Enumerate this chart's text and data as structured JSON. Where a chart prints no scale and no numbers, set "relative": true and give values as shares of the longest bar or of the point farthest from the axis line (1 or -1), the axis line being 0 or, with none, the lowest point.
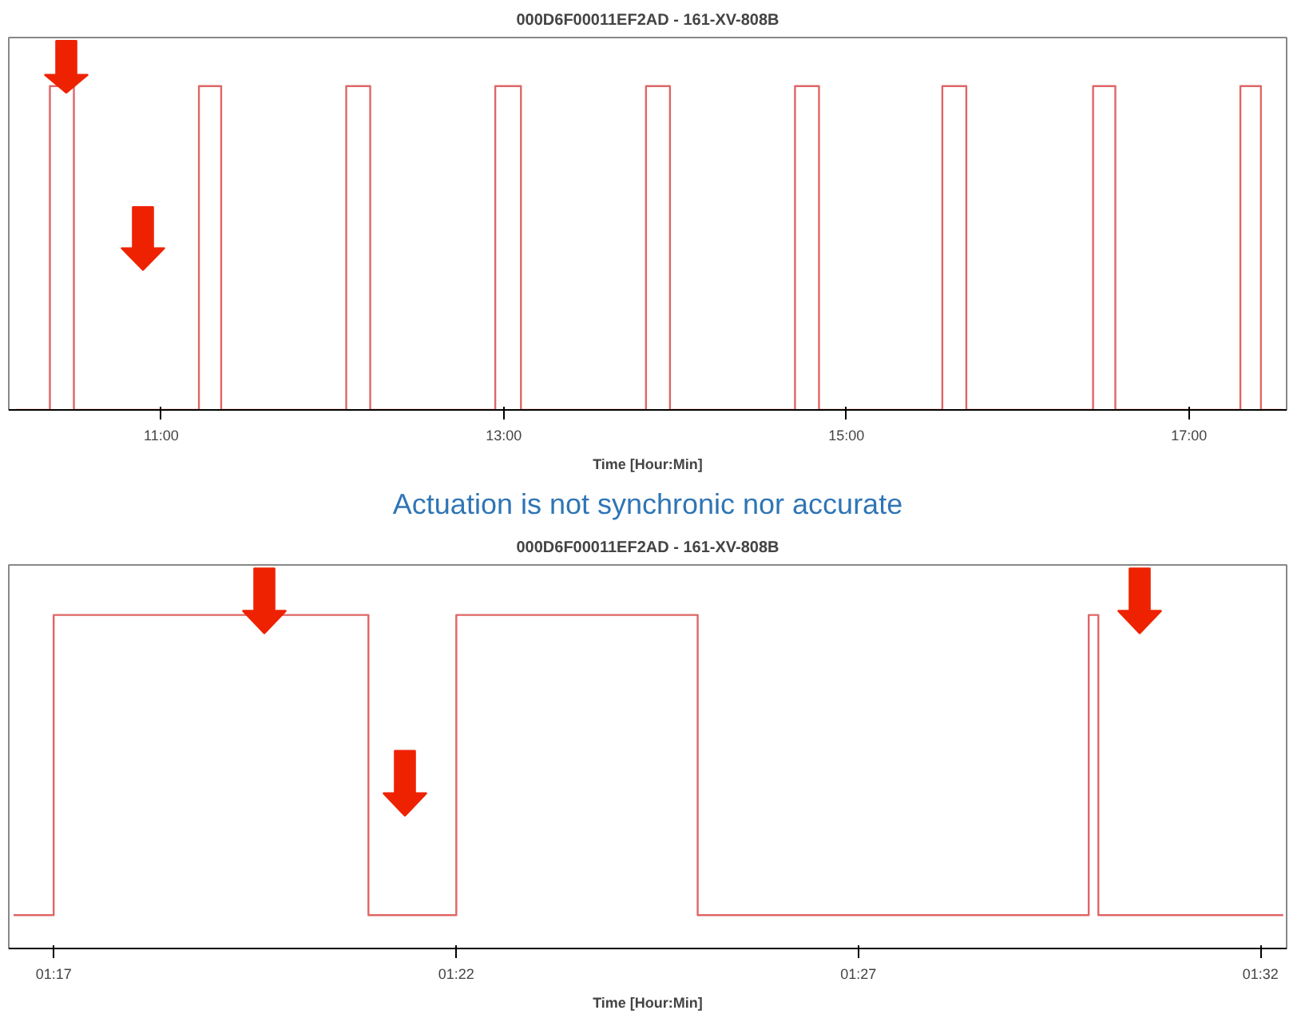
{
  "chart_data": [
    {
      "type": "step",
      "title": "000D6F00011EF2AD - 161-XV-808B",
      "xlabel": "Time [Hour:Min]",
      "relative": true,
      "grid": false,
      "annotations": [
        "Actuation is not synchronic nor accurate"
      ],
      "xlim": [
        10.11,
        17.57
      ],
      "xticks": [
        {
          "value": 11,
          "label": "11:00"
        },
        {
          "value": 13,
          "label": "13:00"
        },
        {
          "value": 15,
          "label": "15:00"
        },
        {
          "value": 17,
          "label": "17:00"
        }
      ],
      "series": [
        {
          "color": "#e06666",
          "x": [
            10.15,
            10.35,
            10.49,
            11.22,
            11.35,
            12.08,
            12.22,
            12.95,
            13.1,
            13.83,
            13.97,
            14.7,
            14.84,
            15.56,
            15.7,
            16.44,
            16.57,
            17.3,
            17.42,
            17.55
          ],
          "values": [
            0,
            1,
            0,
            1,
            0,
            1,
            0,
            1,
            0,
            1,
            0,
            1,
            0,
            1,
            0,
            1,
            0,
            1,
            0,
            0
          ]
        }
      ]
    },
    {
      "type": "step",
      "title": "000D6F00011EF2AD - 161-XV-808B",
      "xlabel": "Time [Hour:Min]",
      "relative": true,
      "grid": false,
      "xlim": [
        1.274,
        1.5387
      ],
      "xticks": [
        {
          "value": 1.2833,
          "label": "01:17"
        },
        {
          "value": 1.3667,
          "label": "01:22"
        },
        {
          "value": 1.45,
          "label": "01:27"
        },
        {
          "value": 1.5333,
          "label": "01:32"
        }
      ],
      "series": [
        {
          "color": "#e06666",
          "x": [
            1.275,
            1.2833,
            1.3485,
            1.3667,
            1.4167,
            1.4977,
            1.4997,
            1.538
          ],
          "values": [
            0.1,
            1,
            0.1,
            1,
            0.1,
            1,
            0.1,
            0.1
          ]
        }
      ]
    }
  ]
}
